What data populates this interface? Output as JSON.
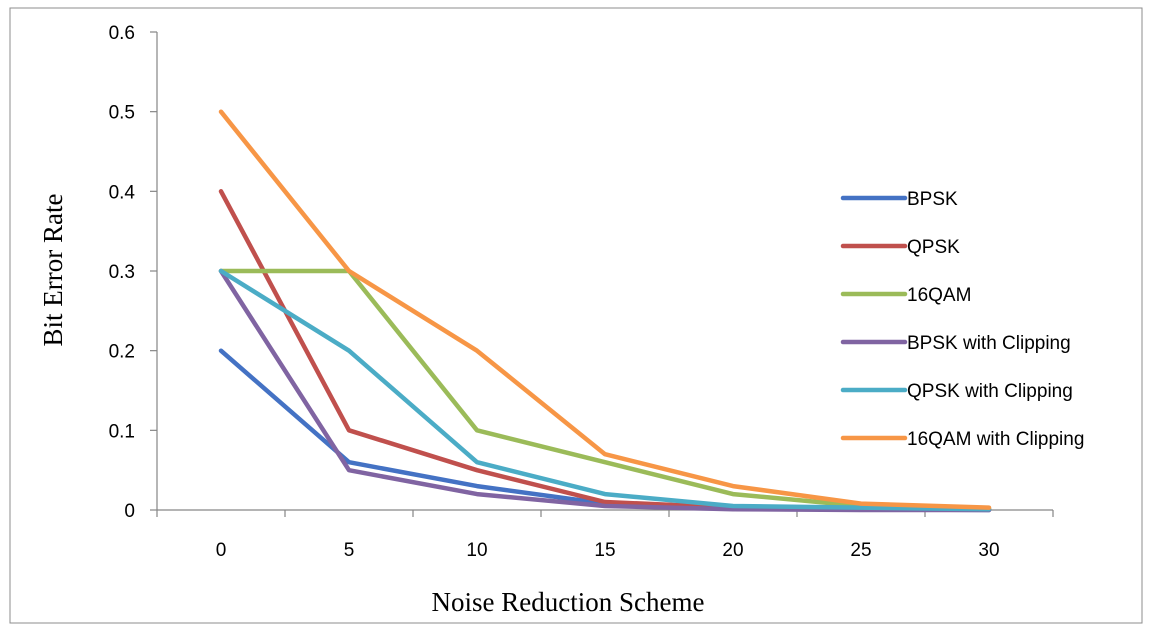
{
  "chart_data": {
    "type": "line",
    "xlabel": "Noise Reduction Scheme",
    "ylabel": "Bit Error Rate",
    "categories": [
      "0",
      "5",
      "10",
      "15",
      "20",
      "25",
      "30"
    ],
    "yticks": [
      "0",
      "0.1",
      "0.2",
      "0.3",
      "0.4",
      "0.5",
      "0.6"
    ],
    "ylim": [
      0,
      0.6
    ],
    "grid": false,
    "legend_position": "right",
    "series": [
      {
        "name": "BPSK",
        "color": "#4472C4",
        "values": [
          0.2,
          0.06,
          0.03,
          0.008,
          0.002,
          0.001,
          0.0
        ]
      },
      {
        "name": "QPSK",
        "color": "#C0504D",
        "values": [
          0.4,
          0.1,
          0.05,
          0.01,
          0.003,
          0.002,
          0.001
        ]
      },
      {
        "name": "16QAM",
        "color": "#9BBB59",
        "values": [
          0.3,
          0.3,
          0.1,
          0.06,
          0.02,
          0.005,
          0.002
        ]
      },
      {
        "name": "BPSK with Clipping",
        "color": "#8064A2",
        "values": [
          0.3,
          0.05,
          0.02,
          0.005,
          0.001,
          0.0,
          0.0
        ]
      },
      {
        "name": "QPSK with Clipping",
        "color": "#4BACC6",
        "values": [
          0.3,
          0.2,
          0.06,
          0.02,
          0.005,
          0.003,
          0.001
        ]
      },
      {
        "name": "16QAM with Clipping",
        "color": "#F79646",
        "values": [
          0.5,
          0.3,
          0.2,
          0.07,
          0.03,
          0.008,
          0.003
        ]
      }
    ]
  }
}
